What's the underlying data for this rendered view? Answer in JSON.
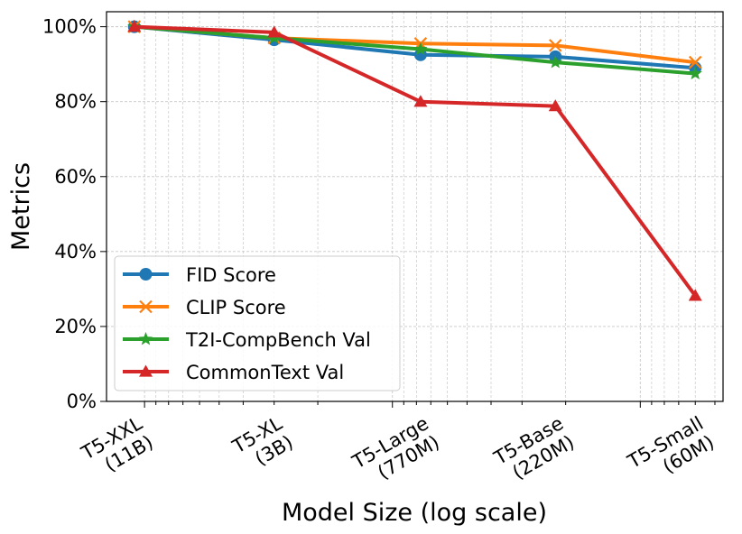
{
  "chart_data": {
    "type": "line",
    "title": "",
    "xlabel": "Model Size (log scale)",
    "ylabel": "Metrics",
    "x_scale": "log",
    "categories": [
      {
        "line1": "T5-XXL",
        "line2": "(11B)",
        "params": 11000000000
      },
      {
        "line1": "T5-XL",
        "line2": "(3B)",
        "params": 3000000000
      },
      {
        "line1": "T5-Large",
        "line2": "(770M)",
        "params": 770000000
      },
      {
        "line1": "T5-Base",
        "line2": "(220M)",
        "params": 220000000
      },
      {
        "line1": "T5-Small",
        "line2": "(60M)",
        "params": 60000000
      }
    ],
    "ylim": [
      0,
      104
    ],
    "y_ticks": [
      0,
      20,
      40,
      60,
      80,
      100
    ],
    "y_tick_suffix": "%",
    "grid": true,
    "legend_position": "lower-left",
    "series": [
      {
        "name": "FID Score",
        "color": "#1f77b4",
        "marker": "circle",
        "values": [
          100,
          96.5,
          92.5,
          92,
          89
        ]
      },
      {
        "name": "CLIP Score",
        "color": "#ff7f0e",
        "marker": "x",
        "values": [
          100,
          97,
          95.5,
          95,
          90.5
        ]
      },
      {
        "name": "T2I-CompBench Val",
        "color": "#2ca02c",
        "marker": "star",
        "values": [
          100,
          97,
          94,
          90.5,
          87.5
        ]
      },
      {
        "name": "CommonText Val",
        "color": "#d62728",
        "marker": "triangle",
        "values": [
          100,
          98.5,
          80,
          78.8,
          28.2
        ]
      }
    ]
  }
}
